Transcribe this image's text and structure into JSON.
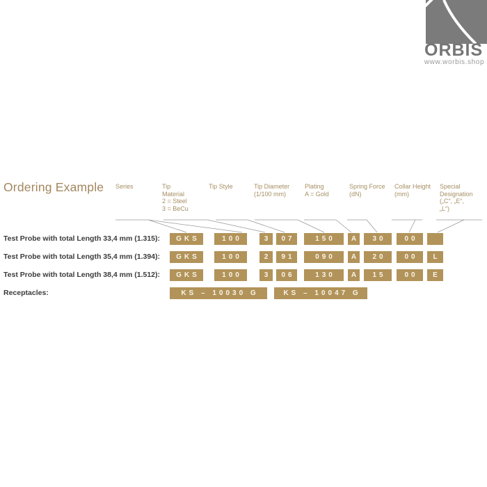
{
  "logo": {
    "brand": "ORBIS",
    "website": "www.worbis.shop"
  },
  "title": "Ordering Example",
  "column_headers": [
    {
      "label": "Series"
    },
    {
      "label": "Tip\nMaterial\n2 = Steel\n3 = BeCu"
    },
    {
      "label": "Tip Style"
    },
    {
      "label": "Tip Diameter\n(1/100 mm)"
    },
    {
      "label": "Plating\nA = Gold"
    },
    {
      "label": "Spring Force\n(dN)"
    },
    {
      "label": "Collar Height\n(mm)"
    },
    {
      "label": "Special\nDesignation\n(„C“, „E“,\n„L“)"
    }
  ],
  "rows": [
    {
      "label": "Test Probe with total Length 33,4 mm (1.315):",
      "codes": [
        "GKS",
        "100",
        "3",
        "07",
        "150",
        "A",
        "30",
        "00",
        ""
      ]
    },
    {
      "label": "Test Probe with total Length 35,4 mm (1.394):",
      "codes": [
        "GKS",
        "100",
        "2",
        "91",
        "090",
        "A",
        "20",
        "00",
        "L"
      ]
    },
    {
      "label": "Test Probe with total Length 38,4 mm (1.512):",
      "codes": [
        "GKS",
        "100",
        "3",
        "06",
        "130",
        "A",
        "15",
        "00",
        "E"
      ]
    },
    {
      "label": "Receptacles:",
      "codes": [
        "KS – 10030 G",
        "KS – 10047 G"
      ]
    }
  ],
  "colors": {
    "gold": "#b29359",
    "boxText": "#f9f5ea",
    "header": "#a68f63",
    "title": "#a3875f",
    "label": "#3b3b3b",
    "line": "#999999",
    "logoGray": "#757575",
    "logoText": "#9a9a9a"
  }
}
